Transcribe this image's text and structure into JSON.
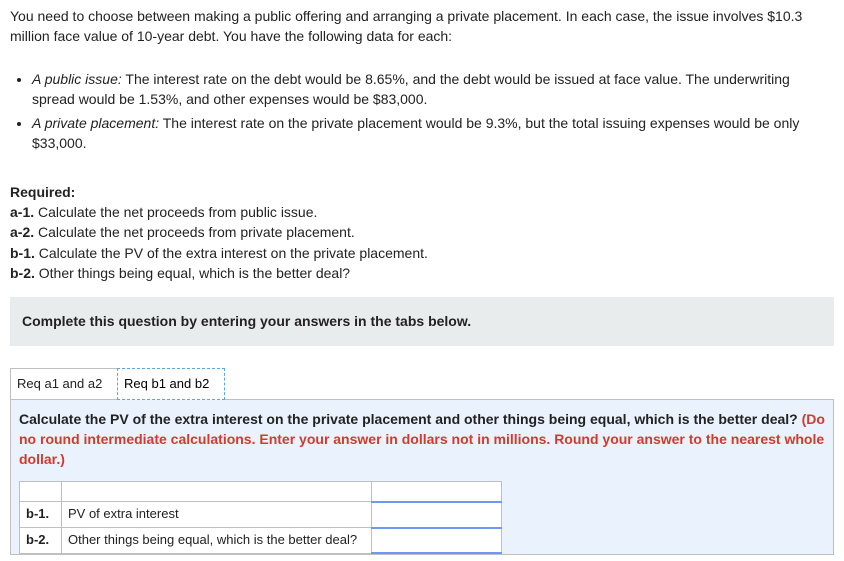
{
  "intro": "You need to choose between making a public offering and arranging a private placement. In each case, the issue involves $10.3 million face value of 10-year debt. You have the following data for each:",
  "scenarios": {
    "public": {
      "label": "A public issue:",
      "text": " The interest rate on the debt would be 8.65%, and the debt would be issued at face value. The underwriting spread would be 1.53%, and other expenses would be $83,000."
    },
    "private": {
      "label": "A private placement:",
      "text": " The interest rate on the private placement would be 9.3%, but the total issuing expenses would be only $33,000."
    }
  },
  "required": {
    "header": "Required:",
    "a1": {
      "lab": "a-1.",
      "text": " Calculate the net proceeds from public issue."
    },
    "a2": {
      "lab": "a-2.",
      "text": " Calculate the net proceeds from private placement."
    },
    "b1": {
      "lab": "b-1.",
      "text": " Calculate the PV of the extra interest on the private placement."
    },
    "b2": {
      "lab": "b-2.",
      "text": " Other things being equal, which is the better deal?"
    }
  },
  "instruction_box": "Complete this question by entering your answers in the tabs below.",
  "tabs": {
    "t1": "Req a1 and a2",
    "t2": "Req b1 and b2"
  },
  "tab_prompt": {
    "main": "Calculate the PV of the extra interest on the private placement and other things being equal, which is the better deal? ",
    "hint": "(Do no round intermediate calculations. Enter your answer in dollars not in millions. Round your answer to the nearest whole dollar.)"
  },
  "answer_table": {
    "row_b1": {
      "lab": "b-1.",
      "desc": "PV of extra interest"
    },
    "row_b2": {
      "lab": "b-2.",
      "desc": "Other things being equal, which is the better deal?"
    }
  }
}
